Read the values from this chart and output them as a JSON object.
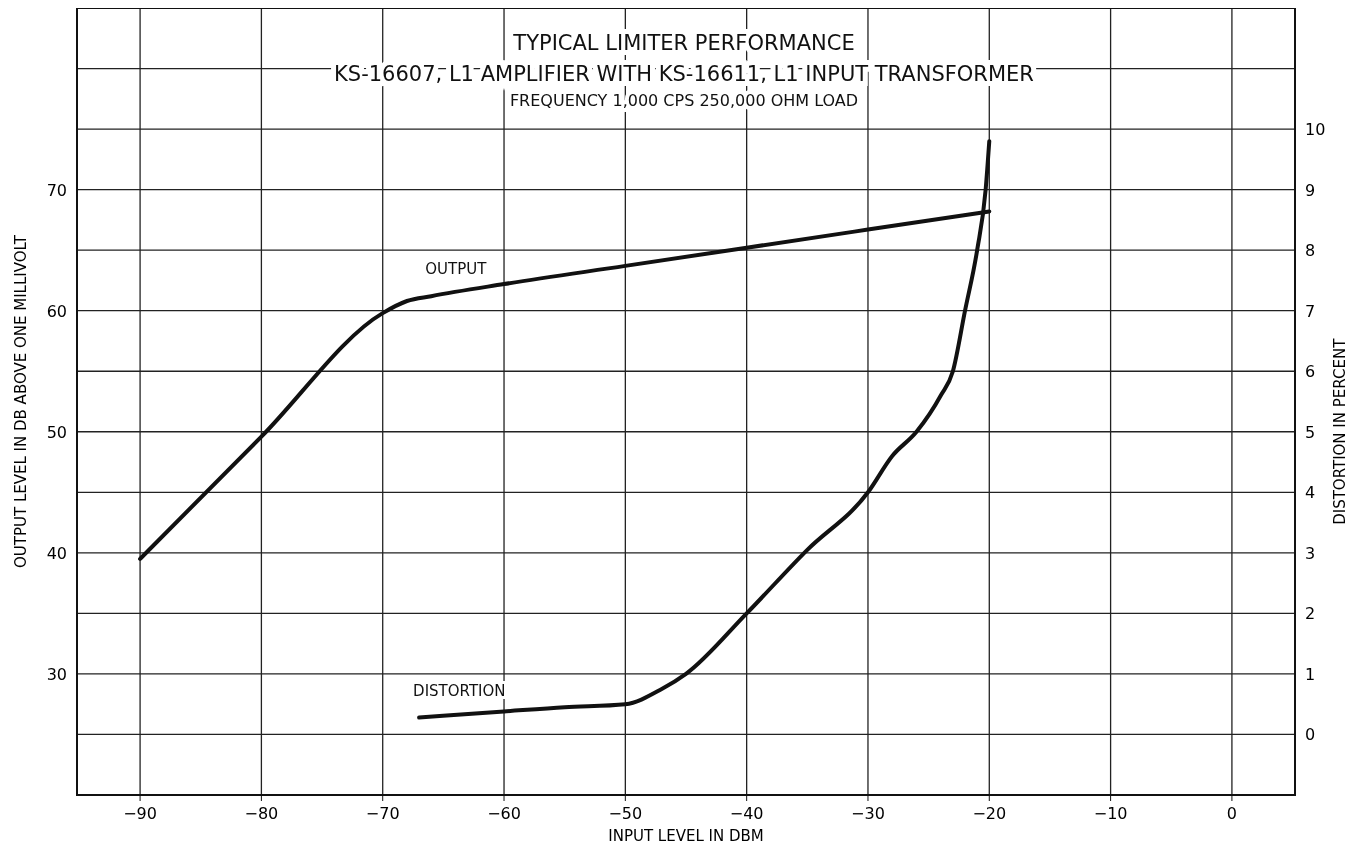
{
  "chart_data": {
    "type": "line",
    "title": "TYPICAL LIMITER PERFORMANCE",
    "subtitle": "KS-16607, L1 AMPLIFIER WITH KS-16611, L1 INPUT TRANSFORMER",
    "annotations": [
      "FREQUENCY 1,000 CPS 250,000 OHM LOAD"
    ],
    "xlabel": "INPUT LEVEL IN DBM",
    "ylabel": "OUTPUT LEVEL IN DB ABOVE ONE MILLIVOLT",
    "y2label": "DISTORTION IN PERCENT",
    "xlim": [
      -95.2,
      5.2
    ],
    "xticks": [
      -90,
      -80,
      -70,
      -60,
      -50,
      -40,
      -30,
      -20,
      -10,
      0
    ],
    "ylim": [
      20,
      85
    ],
    "yticks": [
      {
        "value": 25,
        "label": null
      },
      30,
      {
        "value": 35,
        "label": null
      },
      40,
      {
        "value": 45,
        "label": null
      },
      50,
      {
        "value": 55,
        "label": null
      },
      60,
      {
        "value": 65,
        "label": null
      },
      70,
      {
        "value": 75,
        "label": null
      },
      {
        "value": 80,
        "label": null
      }
    ],
    "y2lim": [
      -1,
      12
    ],
    "y2ticks": [
      0,
      1,
      2,
      3,
      4,
      5,
      6,
      7,
      8,
      9,
      10
    ],
    "grid": true,
    "marker": "none",
    "line_style": "solid",
    "series": [
      {
        "name": "OUTPUT",
        "color": "#111111",
        "x": [
          -90,
          -80,
          -70,
          -68,
          -66,
          -60,
          -50,
          -40,
          -30,
          -20
        ],
        "values": [
          39.5,
          49.6,
          59.8,
          60.8,
          61.2,
          62.2,
          63.7,
          65.2,
          66.7,
          68.2
        ]
      },
      {
        "name": "DISTORTION",
        "color": "#111111",
        "axis": "y2",
        "x": [
          -67,
          -60,
          -55,
          -50,
          -47,
          -45,
          -40,
          -35,
          -30,
          -28,
          -26,
          -24,
          -23,
          -22,
          -21,
          -20.3,
          -20
        ],
        "values": [
          0.28,
          0.38,
          0.45,
          0.5,
          0.75,
          1.0,
          2.0,
          3.05,
          4.0,
          4.6,
          5.0,
          5.6,
          6.0,
          7.0,
          8.0,
          9.0,
          9.8
        ]
      }
    ]
  }
}
